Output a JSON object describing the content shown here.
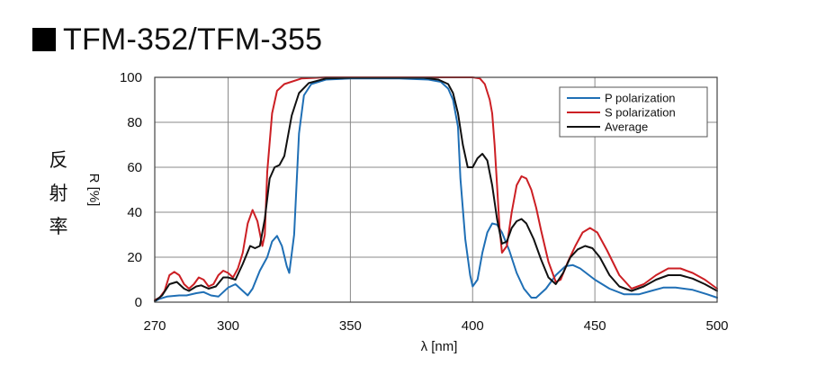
{
  "title": "■TFM-352/TFM-355",
  "title_text": "TFM-352/TFM-355",
  "ylabel_jp": [
    "反",
    "射",
    "率"
  ],
  "chart_data": {
    "type": "line",
    "xlabel": "λ [nm]",
    "ylabel": "R [%]",
    "xlim": [
      270,
      500
    ],
    "ylim": [
      0,
      100
    ],
    "x_ticks": [
      270,
      300,
      350,
      400,
      450,
      500
    ],
    "x_tick_labels": [
      "270",
      "300",
      "350",
      "400",
      "450",
      "500"
    ],
    "y_ticks": [
      0,
      20,
      40,
      60,
      80,
      100
    ],
    "y_tick_labels": [
      "0",
      "20",
      "40",
      "60",
      "80",
      "100"
    ],
    "x_gridlines": [
      300,
      350,
      400,
      450
    ],
    "grid": true,
    "legend_position": "top-right",
    "series": [
      {
        "name": "P polarization",
        "color": "#1f6fb5",
        "points": [
          [
            270,
            0.5
          ],
          [
            272,
            1.5
          ],
          [
            275,
            2.5
          ],
          [
            280,
            3
          ],
          [
            283,
            3
          ],
          [
            287,
            4
          ],
          [
            290,
            4.5
          ],
          [
            293,
            3
          ],
          [
            296,
            2.5
          ],
          [
            300,
            6.5
          ],
          [
            303,
            8
          ],
          [
            305,
            6
          ],
          [
            308,
            3
          ],
          [
            310,
            6
          ],
          [
            313,
            14
          ],
          [
            316,
            20
          ],
          [
            318,
            27
          ],
          [
            320,
            29.5
          ],
          [
            322,
            25
          ],
          [
            324,
            16
          ],
          [
            325,
            13
          ],
          [
            327,
            30
          ],
          [
            329,
            75
          ],
          [
            331,
            92
          ],
          [
            334,
            97
          ],
          [
            340,
            99
          ],
          [
            350,
            99.5
          ],
          [
            370,
            99.5
          ],
          [
            382,
            99
          ],
          [
            387,
            98
          ],
          [
            390,
            95
          ],
          [
            392,
            90
          ],
          [
            394,
            78
          ],
          [
            395,
            55
          ],
          [
            397,
            28
          ],
          [
            399,
            12
          ],
          [
            400,
            7
          ],
          [
            402,
            10
          ],
          [
            404,
            22
          ],
          [
            406,
            31
          ],
          [
            408,
            35
          ],
          [
            410,
            34.5
          ],
          [
            412,
            31
          ],
          [
            415,
            23
          ],
          [
            418,
            13
          ],
          [
            421,
            6
          ],
          [
            424,
            2
          ],
          [
            426,
            2
          ],
          [
            430,
            6
          ],
          [
            434,
            12
          ],
          [
            438,
            16
          ],
          [
            441,
            16.5
          ],
          [
            444,
            15
          ],
          [
            450,
            10
          ],
          [
            456,
            6
          ],
          [
            462,
            3.5
          ],
          [
            468,
            3.5
          ],
          [
            473,
            5
          ],
          [
            478,
            6.5
          ],
          [
            483,
            6.5
          ],
          [
            490,
            5.5
          ],
          [
            496,
            3.5
          ],
          [
            500,
            2
          ]
        ]
      },
      {
        "name": "S polarization",
        "color": "#cc1f24",
        "points": [
          [
            270,
            1
          ],
          [
            272,
            2
          ],
          [
            274,
            5
          ],
          [
            276,
            12
          ],
          [
            278,
            13.5
          ],
          [
            280,
            12
          ],
          [
            282,
            8
          ],
          [
            284,
            6
          ],
          [
            286,
            8
          ],
          [
            288,
            11
          ],
          [
            290,
            10
          ],
          [
            292,
            7
          ],
          [
            294,
            8
          ],
          [
            296,
            12
          ],
          [
            298,
            14
          ],
          [
            300,
            13
          ],
          [
            302,
            11
          ],
          [
            304,
            15
          ],
          [
            306,
            22
          ],
          [
            308,
            35
          ],
          [
            310,
            41
          ],
          [
            312,
            36
          ],
          [
            314,
            25
          ],
          [
            315,
            30
          ],
          [
            316,
            58
          ],
          [
            318,
            84
          ],
          [
            320,
            94
          ],
          [
            323,
            97
          ],
          [
            330,
            99.5
          ],
          [
            340,
            100
          ],
          [
            380,
            100
          ],
          [
            400,
            100
          ],
          [
            403,
            99.5
          ],
          [
            405,
            97
          ],
          [
            407,
            90
          ],
          [
            408,
            84
          ],
          [
            409,
            70
          ],
          [
            410,
            52
          ],
          [
            411,
            33
          ],
          [
            412,
            22
          ],
          [
            414,
            25
          ],
          [
            416,
            40
          ],
          [
            418,
            52
          ],
          [
            420,
            56
          ],
          [
            422,
            55
          ],
          [
            424,
            50
          ],
          [
            426,
            42
          ],
          [
            428,
            32
          ],
          [
            431,
            18
          ],
          [
            434,
            9
          ],
          [
            436,
            10
          ],
          [
            439,
            18
          ],
          [
            442,
            25
          ],
          [
            445,
            31
          ],
          [
            448,
            33
          ],
          [
            451,
            31
          ],
          [
            455,
            23
          ],
          [
            460,
            12
          ],
          [
            465,
            6
          ],
          [
            470,
            8
          ],
          [
            475,
            12
          ],
          [
            480,
            15
          ],
          [
            485,
            15
          ],
          [
            490,
            13
          ],
          [
            495,
            10
          ],
          [
            500,
            6
          ]
        ]
      },
      {
        "name": "Average",
        "color": "#111111",
        "points": [
          [
            270,
            0.5
          ],
          [
            273,
            3
          ],
          [
            276,
            8
          ],
          [
            279,
            9
          ],
          [
            282,
            6
          ],
          [
            284,
            5
          ],
          [
            287,
            7
          ],
          [
            289,
            7.5
          ],
          [
            292,
            6
          ],
          [
            295,
            7
          ],
          [
            298,
            11
          ],
          [
            300,
            11
          ],
          [
            303,
            10
          ],
          [
            306,
            17
          ],
          [
            309,
            25
          ],
          [
            311,
            24
          ],
          [
            313,
            25
          ],
          [
            315,
            37
          ],
          [
            317,
            55
          ],
          [
            319,
            60
          ],
          [
            321,
            61
          ],
          [
            323,
            65
          ],
          [
            326,
            83
          ],
          [
            329,
            93
          ],
          [
            333,
            97.5
          ],
          [
            340,
            99.5
          ],
          [
            350,
            99.8
          ],
          [
            380,
            99.8
          ],
          [
            386,
            99
          ],
          [
            390,
            97
          ],
          [
            392,
            93
          ],
          [
            394,
            84
          ],
          [
            396,
            70
          ],
          [
            398,
            60
          ],
          [
            400,
            60
          ],
          [
            402,
            64
          ],
          [
            404,
            66
          ],
          [
            406,
            63
          ],
          [
            408,
            52
          ],
          [
            410,
            37
          ],
          [
            412,
            26
          ],
          [
            414,
            27
          ],
          [
            416,
            33
          ],
          [
            418,
            36
          ],
          [
            420,
            37
          ],
          [
            422,
            35
          ],
          [
            425,
            28
          ],
          [
            428,
            19
          ],
          [
            431,
            11
          ],
          [
            434,
            8
          ],
          [
            437,
            13
          ],
          [
            440,
            20
          ],
          [
            443,
            23.5
          ],
          [
            446,
            25
          ],
          [
            449,
            24
          ],
          [
            452,
            20
          ],
          [
            456,
            12
          ],
          [
            460,
            7
          ],
          [
            465,
            5
          ],
          [
            470,
            7
          ],
          [
            475,
            10
          ],
          [
            480,
            12
          ],
          [
            485,
            12
          ],
          [
            490,
            10.5
          ],
          [
            495,
            8
          ],
          [
            500,
            5
          ]
        ]
      }
    ]
  }
}
